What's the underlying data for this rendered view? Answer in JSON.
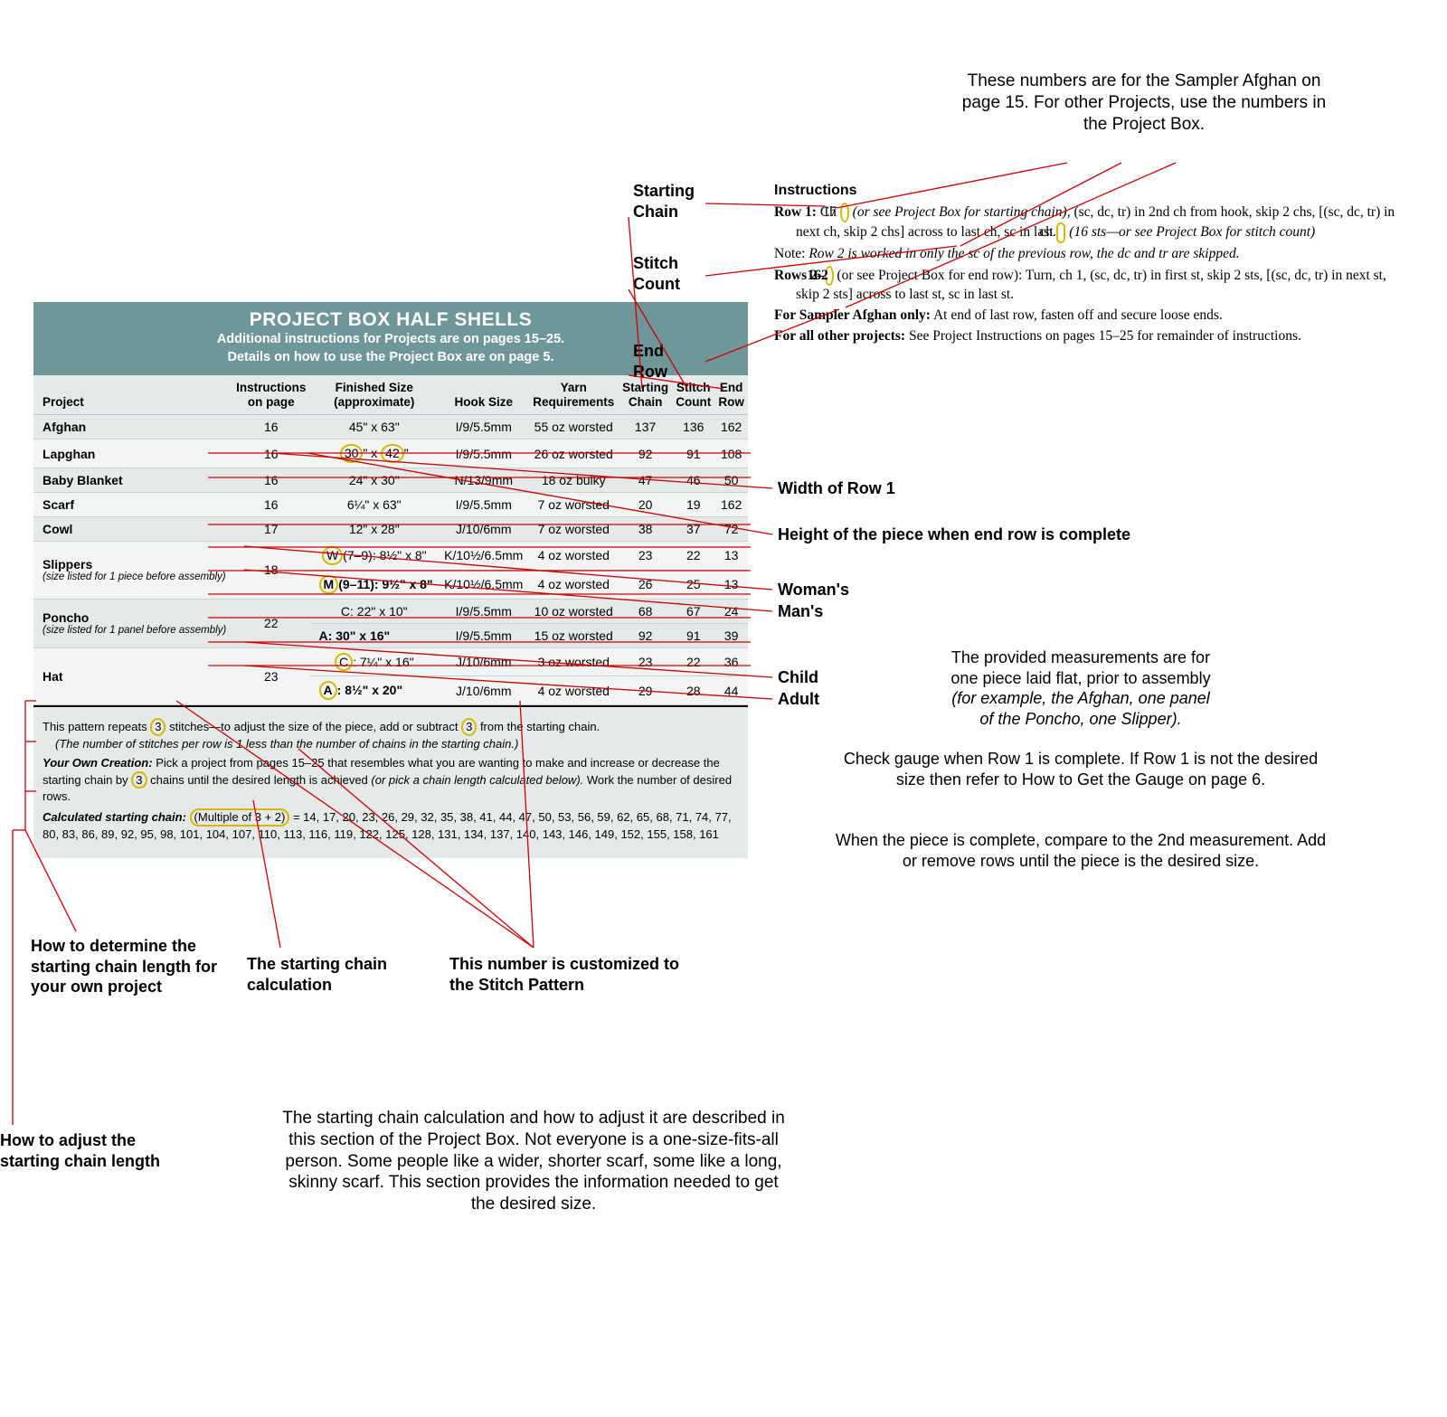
{
  "colors": {
    "header_bg": "#6f9699",
    "header_text": "#ffffff",
    "row_alt": "#f3f5f5",
    "box_bg": "#e6e9e9",
    "border": "#c7d0d0",
    "line": "#cc0000",
    "highlight_ring": "#d6b800",
    "text": "#000000"
  },
  "project_box": {
    "title": "PROJECT BOX HALF SHELLS",
    "subtitle1": "Additional instructions for Projects are on pages 15–25.",
    "subtitle2": "Details on how to use the Project Box are on page 5.",
    "columns": [
      "Project",
      "Instructions on page",
      "Finished Size (approximate)",
      "Hook Size",
      "Yarn Requirements",
      "Starting Chain",
      "Stitch Count",
      "End Row"
    ],
    "rows": [
      {
        "project": "Afghan",
        "page": "16",
        "size": "45\" x 63\"",
        "hook": "I/9/5.5mm",
        "yarn": "55 oz worsted",
        "start": "137",
        "stitch": "136",
        "end": "162"
      },
      {
        "project": "Lapghan",
        "page": "16",
        "size_pre": "",
        "size_c1": "30",
        "size_mid": "\" x ",
        "size_c2": "42",
        "size_post": "\"",
        "hook": "I/9/5.5mm",
        "yarn": "26 oz worsted",
        "start": "92",
        "stitch": "91",
        "end": "108"
      },
      {
        "project": "Baby Blanket",
        "page": "16",
        "size": "24\" x 30\"",
        "hook": "N/13/9mm",
        "yarn": "18 oz bulky",
        "start": "47",
        "stitch": "46",
        "end": "50"
      },
      {
        "project": "Scarf",
        "page": "16",
        "size": "6¼\" x 63\"",
        "hook": "I/9/5.5mm",
        "yarn": "7 oz worsted",
        "start": "20",
        "stitch": "19",
        "end": "162"
      },
      {
        "project": "Cowl",
        "page": "17",
        "size": "12\" x 28\"",
        "hook": "J/10/6mm",
        "yarn": "7 oz worsted",
        "start": "38",
        "stitch": "37",
        "end": "72"
      },
      {
        "project": "Slippers",
        "note": "(size listed for 1 piece before assembly)",
        "page": "18",
        "sub": [
          {
            "pre": "W",
            "size": "(7–9): 8½\" x 8\"",
            "hook": "K/10½/6.5mm",
            "yarn": "4 oz worsted",
            "start": "23",
            "stitch": "22",
            "end": "13"
          },
          {
            "pre": "M",
            "size": "(9–11): 9½\" x 8\"",
            "hook": "K/10½/6.5mm",
            "yarn": "4 oz worsted",
            "start": "26",
            "stitch": "25",
            "end": "13"
          }
        ]
      },
      {
        "project": "Poncho",
        "note": "(size listed for 1 panel before assembly)",
        "page": "22",
        "sub": [
          {
            "size": "C: 22\" x 10\"",
            "hook": "I/9/5.5mm",
            "yarn": "10 oz worsted",
            "start": "68",
            "stitch": "67",
            "end": "24"
          },
          {
            "size": "A: 30\" x 16\"",
            "hook": "I/9/5.5mm",
            "yarn": "15 oz worsted",
            "start": "92",
            "stitch": "91",
            "end": "39"
          }
        ]
      },
      {
        "project": "Hat",
        "page": "23",
        "sub": [
          {
            "pre": "C",
            "size": ": 7¼\" x 16\"",
            "hook": "J/10/6mm",
            "yarn": "3 oz worsted",
            "start": "23",
            "stitch": "22",
            "end": "36"
          },
          {
            "pre": "A",
            "size": ": 8½\" x 20\"",
            "hook": "J/10/6mm",
            "yarn": "4 oz worsted",
            "start": "29",
            "stitch": "28",
            "end": "44"
          }
        ]
      }
    ],
    "foot1_a": "This pattern repeats ",
    "foot1_n1": "3",
    "foot1_b": " stitches—to adjust the size of the piece, add or subtract ",
    "foot1_n2": "3",
    "foot1_c": " from the starting chain.",
    "foot1_sub": "(The number of stitches per row is 1 less than the number of chains in the starting chain.)",
    "foot_own_label": "Your Own Creation:",
    "foot_own_a": " Pick a project from pages 15–25 that resembles what you are wanting to make and increase or decrease the starting chain by ",
    "foot_own_n": "3",
    "foot_own_b": " chains until the desired length is achieved ",
    "foot_own_c": "(or pick a chain length calculated below).",
    "foot_own_d": " Work the number of desired rows.",
    "calc_label": "Calculated starting chain:",
    "calc_formula": "(Multiple of 3 + 2)",
    "calc_rest": " = 14, 17, 20, 23, 26, 29, 32, 35, 38, 41, 44, 47, 50, 53, 56, 59, 62, 65, 68, 71, 74, 77, 80, 83, 86, 89, 92, 95, 98, 101, 104, 107, 110, 113, 116, 119, 122, 125, 128, 131, 134, 137, 140, 143, 146, 149, 152, 155, 158, 161"
  },
  "instructions": {
    "heading": "Instructions",
    "row1_a": "Row 1:",
    "row1_b": " Ch ",
    "row1_n": "17",
    "row1_c": " (or see Project Box for starting chain)",
    "row1_d": ", (sc, dc, tr) in 2nd ch from hook, skip 2 chs, [(sc, dc, tr) in next ch, skip 2 chs] across to last ch, sc in last ",
    "row1_e": "ch.",
    "row1_f": " (16 sts—or see Project Box for stitch count)",
    "note_a": "Note:",
    "note_b": " Row 2 is worked in only the sc of the previous row, the dc and tr are skipped.",
    "rows2_a": "Rows 2–",
    "rows2_n": "162",
    "rows2_b": " (or see Project Box for end row):",
    "rows2_c": " Turn, ch 1, (sc, dc, tr) in first st, skip 2 sts, [(sc, dc, tr) in next st, skip 2 sts] across to last st, sc in last st.",
    "samp_a": "For Sampler Afghan only:",
    "samp_b": " At end of last row, fasten off and secure loose ends.",
    "other_a": "For all other projects:",
    "other_b": " See Project Instructions on pages 15–25 for remainder of instructions."
  },
  "callouts": {
    "top_note": "These numbers are for the Sampler Afghan on page 15. For other Projects, use the numbers in the Project Box.",
    "starting_chain": "Starting Chain",
    "stitch_count": "Stitch Count",
    "end_row": "End Row",
    "width_row1": "Width of Row 1",
    "height_end": "Height of the piece when end row is complete",
    "womans": "Woman's",
    "mans": "Man's",
    "child": "Child",
    "adult": "Adult",
    "measure_note": "The provided measurements are for one piece laid flat, prior to assembly (for example, the Afghan, one panel of the Poncho, one Slipper).",
    "gauge_note": "Check gauge when Row 1 is complete. If Row 1 is not the desired size then refer to How to Get the Gauge on page 6.",
    "compare_note": "When the piece is complete, compare to the 2nd measurement. Add or remove rows until the piece is the desired size.",
    "how_determine": "How to determine the starting chain length for your own project",
    "calc_label": "The starting chain calculation",
    "custom_label": "This number is customized to the Stitch Pattern",
    "how_adjust": "How to adjust the starting chain length",
    "bottom_para": "The starting chain calculation and how to adjust it are described in this section of the Project Box. Not everyone is a one-size-fits-all person. Some people like a wider, shorter scarf, some like a long, skinny scarf. This section provides the information needed to get the desired size."
  }
}
